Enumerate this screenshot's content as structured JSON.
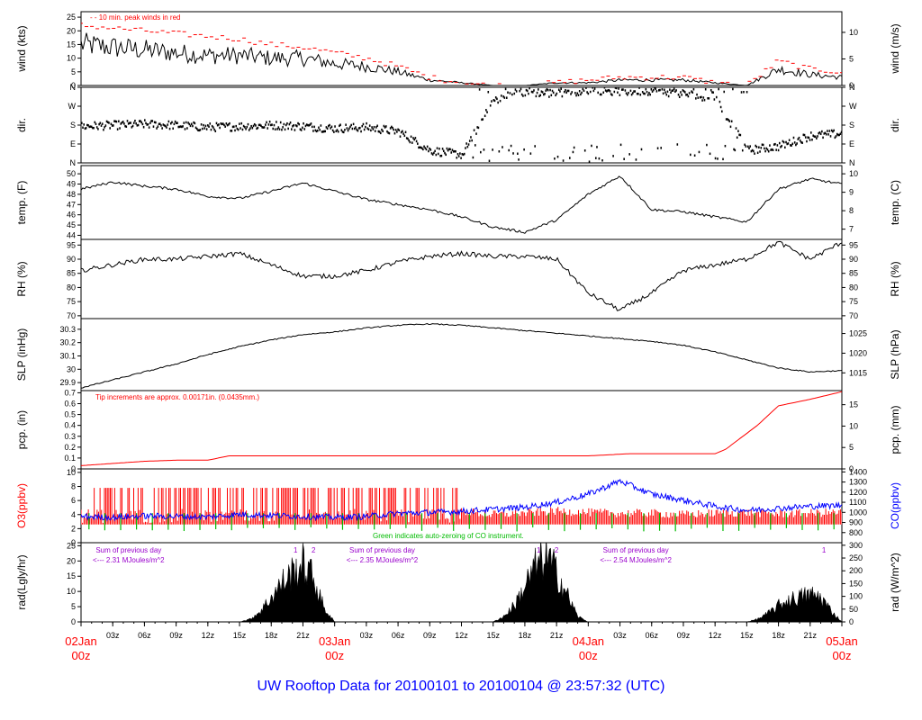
{
  "page": {
    "title": "UW Rooftop Data for 20100101  to  20100104 @ 23:57:32  (UTC)"
  },
  "colors": {
    "axis": "#000000",
    "red": "#ff0000",
    "blue": "#0000ff",
    "green": "#00bb00",
    "purple": "#9900cc",
    "title_blue": "#0000ff"
  },
  "chart_data": [
    {
      "type": "line",
      "name": "wind",
      "ylabel": "wind (kts)",
      "ylabel_right": "wind (m/s)",
      "ylim": [
        0,
        27
      ],
      "yticks": [
        0,
        5,
        10,
        15,
        20,
        25
      ],
      "right_ticks": [
        0,
        5,
        10
      ],
      "annotation": "- - 10 min. peak winds in red",
      "x_hours": [
        0,
        3,
        6,
        9,
        12,
        15,
        18,
        21,
        24,
        27,
        30,
        33,
        36,
        39,
        42,
        45,
        48,
        51,
        54,
        57,
        60,
        63,
        66,
        69,
        72
      ],
      "series": [
        {
          "color": "black",
          "values": [
            15,
            14,
            13,
            12,
            11,
            11,
            10,
            10,
            8,
            7,
            5,
            2,
            1,
            0,
            0,
            1,
            1,
            2,
            2,
            2,
            1,
            0,
            6,
            4,
            3
          ]
        },
        {
          "color": "red",
          "values": [
            22,
            21,
            20,
            19,
            18,
            17,
            15,
            14,
            12,
            10,
            7,
            3,
            1,
            0,
            0,
            1,
            2,
            3,
            3,
            3,
            1,
            0,
            9,
            6,
            5
          ]
        }
      ]
    },
    {
      "type": "scatter",
      "name": "dir",
      "ylabel": "dir.",
      "ylabel_right": "dir.",
      "ylim": [
        0,
        360
      ],
      "ytick_labels": [
        "N",
        "E",
        "S",
        "W",
        "N"
      ],
      "x_hours": [
        0,
        3,
        6,
        9,
        12,
        15,
        18,
        21,
        24,
        27,
        30,
        33,
        36,
        39,
        42,
        45,
        48,
        51,
        54,
        57,
        60,
        63,
        66,
        69,
        72
      ],
      "values": [
        175,
        180,
        185,
        180,
        170,
        175,
        180,
        175,
        165,
        170,
        150,
        60,
        40,
        300,
        340,
        330,
        350,
        340,
        345,
        330,
        310,
        60,
        80,
        130,
        140
      ]
    },
    {
      "type": "line",
      "name": "temp",
      "ylabel": "temp. (F)",
      "ylabel_right": "temp. (C)",
      "ylim": [
        43.6,
        50.8
      ],
      "yticks": [
        44,
        45,
        46,
        47,
        48,
        49,
        50
      ],
      "right_ticks": [
        7,
        8,
        9,
        10
      ],
      "x_hours": [
        0,
        3,
        6,
        9,
        12,
        15,
        18,
        21,
        24,
        27,
        30,
        33,
        36,
        39,
        42,
        45,
        48,
        51,
        54,
        57,
        60,
        63,
        66,
        69,
        72
      ],
      "values": [
        48.5,
        49.2,
        48.8,
        48.5,
        47.8,
        47.6,
        48.3,
        49.1,
        48.3,
        47.5,
        47,
        46.5,
        45.8,
        44.8,
        44.3,
        45.5,
        48,
        49.8,
        46.5,
        46.3,
        45.8,
        45.3,
        48.5,
        49.5,
        49
      ]
    },
    {
      "type": "line",
      "name": "rh",
      "ylabel": "RH (%)",
      "ylabel_right": "RH (%)",
      "ylim": [
        69,
        97
      ],
      "yticks": [
        70,
        75,
        80,
        85,
        90,
        95
      ],
      "right_ticks": [
        70,
        75,
        80,
        85,
        90,
        95
      ],
      "x_hours": [
        0,
        3,
        6,
        9,
        12,
        15,
        18,
        21,
        24,
        27,
        30,
        33,
        36,
        39,
        42,
        45,
        48,
        51,
        54,
        57,
        60,
        63,
        66,
        69,
        72
      ],
      "values": [
        86,
        88,
        90,
        90,
        91,
        92,
        88,
        84,
        84,
        86,
        89,
        91,
        92,
        91,
        91,
        90,
        78,
        72,
        78,
        86,
        88,
        90,
        96,
        90,
        96
      ]
    },
    {
      "type": "line",
      "name": "slp",
      "ylabel": "SLP (inHg)",
      "ylabel_right": "SLP (hPa)",
      "ylim": [
        29.84,
        30.38
      ],
      "yticks": [
        29.9,
        30.0,
        30.1,
        30.2,
        30.3
      ],
      "right_ticks": [
        1015,
        1020,
        1025
      ],
      "x_hours": [
        0,
        3,
        6,
        9,
        12,
        15,
        18,
        21,
        24,
        27,
        30,
        33,
        36,
        39,
        42,
        45,
        48,
        51,
        54,
        57,
        60,
        63,
        66,
        69,
        72
      ],
      "values": [
        29.86,
        29.92,
        29.98,
        30.04,
        30.11,
        30.17,
        30.22,
        30.26,
        30.28,
        30.31,
        30.33,
        30.34,
        30.33,
        30.31,
        30.29,
        30.27,
        30.25,
        30.23,
        30.21,
        30.18,
        30.13,
        30.07,
        30.01,
        29.98,
        29.99
      ]
    },
    {
      "type": "line",
      "name": "pcp",
      "ylabel": "pcp. (in)",
      "ylabel_right": "pcp. (mm)",
      "ylim": [
        0,
        0.72
      ],
      "yticks": [
        0,
        0.1,
        0.2,
        0.3,
        0.4,
        0.5,
        0.6,
        0.7
      ],
      "right_ticks": [
        0,
        5,
        10,
        15
      ],
      "annotation": "Tip increments are approx. 0.00171in. (0.0435mm.)",
      "x_hours": [
        0,
        3,
        6,
        9,
        12,
        14,
        18,
        24,
        30,
        36,
        42,
        48,
        52,
        60,
        61,
        64,
        66,
        69,
        72
      ],
      "values": [
        0.03,
        0.05,
        0.07,
        0.08,
        0.08,
        0.12,
        0.12,
        0.12,
        0.12,
        0.12,
        0.12,
        0.12,
        0.14,
        0.14,
        0.18,
        0.4,
        0.58,
        0.64,
        0.71
      ]
    },
    {
      "type": "line",
      "name": "o3co",
      "ylabel": "O3(ppbv)",
      "ylabel_right": "CO(ppbv)",
      "ylim": [
        0,
        10.5
      ],
      "yticks": [
        0,
        2,
        4,
        6,
        8,
        10
      ],
      "right_ticks": [
        800,
        900,
        1000,
        1100,
        1200,
        1300,
        1400
      ],
      "annotation": "Green indicates auto-zeroing of CO instrument.",
      "x_hours": [
        0,
        3,
        6,
        9,
        12,
        15,
        18,
        21,
        24,
        27,
        30,
        33,
        36,
        39,
        42,
        45,
        48,
        51,
        54,
        57,
        60,
        63,
        66,
        69,
        72
      ],
      "series": [
        {
          "name": "O3(ppbv)",
          "color": "red",
          "values": [
            7,
            7.5,
            7,
            6.5,
            7.5,
            7,
            6.5,
            7,
            6,
            7,
            6.5,
            5,
            4.5,
            4,
            4.2,
            4.5,
            4.3,
            4.2,
            4.2,
            4.0,
            4.2,
            4.3,
            4.1,
            4.2,
            4.3
          ]
        },
        {
          "name": "CO(ppbv)",
          "color": "blue",
          "values": [
            960,
            950,
            965,
            960,
            955,
            980,
            970,
            960,
            950,
            960,
            990,
            1000,
            1010,
            1030,
            1050,
            1100,
            1180,
            1310,
            1180,
            1120,
            1060,
            1020,
            1040,
            1060,
            1070
          ]
        }
      ]
    },
    {
      "type": "area",
      "name": "rad",
      "ylabel": "rad(Lgly/hr)",
      "ylabel_right": "rad (W/m^2)",
      "ylim": [
        0,
        26
      ],
      "yticks": [
        0,
        5,
        10,
        15,
        20,
        25
      ],
      "right_ticks": [
        0,
        50,
        100,
        150,
        200,
        250,
        300
      ],
      "x_hours": [
        0,
        15,
        16,
        17,
        18,
        19,
        20,
        21,
        22,
        23,
        24,
        39,
        40,
        41,
        42,
        43,
        44,
        45,
        46,
        47,
        48,
        63,
        64,
        65,
        66,
        67,
        68,
        69,
        70,
        71,
        72
      ],
      "values": [
        0,
        0,
        1,
        4,
        9,
        14,
        18,
        21,
        16,
        5,
        0,
        0,
        2,
        6,
        13,
        20,
        24,
        18,
        10,
        2,
        0,
        0,
        1,
        3,
        6,
        8,
        9,
        10,
        9,
        4,
        0
      ],
      "annotations": [
        {
          "hour": 4.5,
          "line1": "Sum of previous day",
          "line2": "<--- 2.31 MJoules/m^2"
        },
        {
          "hour": 28.5,
          "line1": "Sum of previous day",
          "line2": "<--- 2.35 MJoules/m^2"
        },
        {
          "hour": 52.5,
          "line1": "Sum of previous day",
          "line2": "<--- 2.54 MJoules/m^2"
        }
      ],
      "markers": [
        {
          "hour": 20.3,
          "label": "1"
        },
        {
          "hour": 22.0,
          "label": "2"
        },
        {
          "hour": 43.3,
          "label": "1"
        },
        {
          "hour": 45.0,
          "label": "2"
        },
        {
          "hour": 70.3,
          "label": "1"
        }
      ]
    }
  ],
  "x_axis": {
    "ticks": [
      {
        "h": 0,
        "label": ""
      },
      {
        "h": 3,
        "label": "03z"
      },
      {
        "h": 6,
        "label": "06z"
      },
      {
        "h": 9,
        "label": "09z"
      },
      {
        "h": 12,
        "label": "12z"
      },
      {
        "h": 15,
        "label": "15z"
      },
      {
        "h": 18,
        "label": "18z"
      },
      {
        "h": 21,
        "label": "21z"
      },
      {
        "h": 24,
        "label": ""
      },
      {
        "h": 27,
        "label": "03z"
      },
      {
        "h": 30,
        "label": "06z"
      },
      {
        "h": 33,
        "label": "09z"
      },
      {
        "h": 36,
        "label": "12z"
      },
      {
        "h": 39,
        "label": "15z"
      },
      {
        "h": 42,
        "label": "18z"
      },
      {
        "h": 45,
        "label": "21z"
      },
      {
        "h": 48,
        "label": ""
      },
      {
        "h": 51,
        "label": "03z"
      },
      {
        "h": 54,
        "label": "06z"
      },
      {
        "h": 57,
        "label": "09z"
      },
      {
        "h": 60,
        "label": "12z"
      },
      {
        "h": 63,
        "label": "15z"
      },
      {
        "h": 66,
        "label": "18z"
      },
      {
        "h": 69,
        "label": "21z"
      },
      {
        "h": 72,
        "label": ""
      }
    ],
    "days": [
      {
        "h": 0,
        "label": "02Jan",
        "sub": "00z"
      },
      {
        "h": 24,
        "label": "03Jan",
        "sub": "00z"
      },
      {
        "h": 48,
        "label": "04Jan",
        "sub": "00z"
      },
      {
        "h": 72,
        "label": "05Jan",
        "sub": "00z"
      }
    ]
  }
}
